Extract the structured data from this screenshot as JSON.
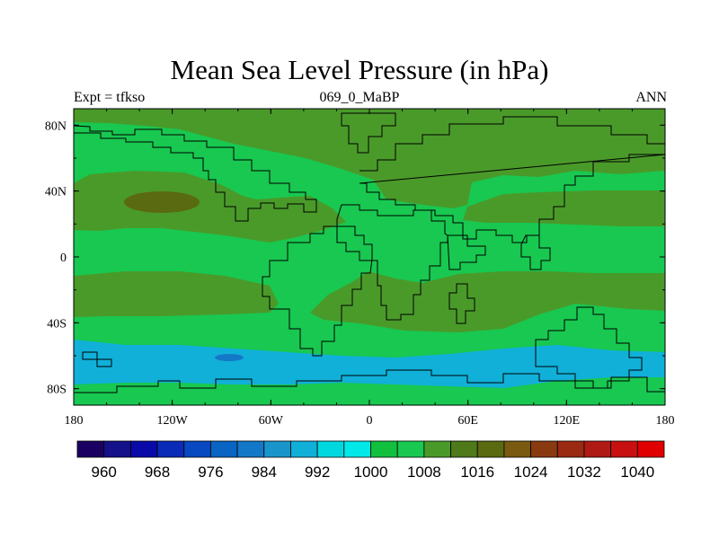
{
  "chart_data": {
    "type": "heatmap",
    "title": "Mean Sea Level Pressure (in hPa)",
    "left_string": "Expt = tfkso",
    "center_string": "069_0_MaBP",
    "right_string": "ANN",
    "x_range": [
      -180,
      180
    ],
    "y_range": [
      -90,
      90
    ],
    "x_ticks": [
      {
        "value": -180,
        "label": "180"
      },
      {
        "value": -120,
        "label": "120W"
      },
      {
        "value": -60,
        "label": "60W"
      },
      {
        "value": 0,
        "label": "0"
      },
      {
        "value": 60,
        "label": "60E"
      },
      {
        "value": 120,
        "label": "120E"
      },
      {
        "value": 180,
        "label": "180"
      }
    ],
    "y_ticks": [
      {
        "value": 80,
        "label": "80N"
      },
      {
        "value": 40,
        "label": "40N"
      },
      {
        "value": 0,
        "label": "0"
      },
      {
        "value": -40,
        "label": "40S"
      },
      {
        "value": -80,
        "label": "80S"
      }
    ],
    "colorbar": {
      "levels": [
        960,
        964,
        968,
        972,
        976,
        980,
        984,
        988,
        992,
        996,
        1000,
        1004,
        1008,
        1012,
        1016,
        1020,
        1024,
        1028,
        1032,
        1036,
        1040
      ],
      "labels": [
        "960",
        "968",
        "976",
        "984",
        "992",
        "1000",
        "1008",
        "1016",
        "1024",
        "1032",
        "1040"
      ],
      "colors": [
        "#1a0060",
        "#15118a",
        "#0a0aa8",
        "#0a2bb8",
        "#0848c0",
        "#0a64c4",
        "#1478c8",
        "#1a95cc",
        "#10b0d8",
        "#00d8e0",
        "#00e8e8",
        "#12c040",
        "#18c850",
        "#4a9a2a",
        "#4e7a1a",
        "#5a6a10",
        "#7a5a10",
        "#8a3a10",
        "#9a2a12",
        "#b01a14",
        "#c81010",
        "#e00000"
      ]
    },
    "pressure_regions": [
      {
        "name": "background",
        "value": 1004
      },
      {
        "name": "north-polar-high",
        "value": 1010
      },
      {
        "name": "north-subtropical-high",
        "value": 1010
      },
      {
        "name": "north-pacific-high-core",
        "value": 1017
      },
      {
        "name": "south-subtropical-high",
        "value": 1010
      },
      {
        "name": "southern-ocean-low",
        "value": 989
      },
      {
        "name": "southern-ocean-low-core",
        "value": 982
      }
    ]
  }
}
